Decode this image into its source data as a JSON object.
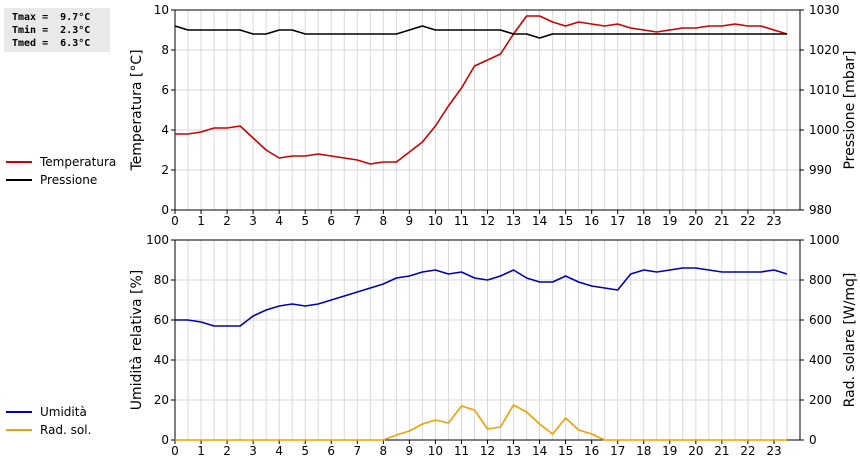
{
  "stats": {
    "tmax": "Tmax =  9.7°C",
    "tmin": "Tmin =  2.3°C",
    "tmed": "Tmed =  6.3°C"
  },
  "legend_top": [
    {
      "label": "Temperatura",
      "color": "#cc0000"
    },
    {
      "label": "Pressione",
      "color": "#000000"
    }
  ],
  "legend_bottom": [
    {
      "label": "Umidità",
      "color": "#0000bb"
    },
    {
      "label": "Rad. sol.",
      "color": "#f0a000"
    }
  ],
  "chart_data": [
    {
      "type": "line",
      "xlim": [
        0,
        24
      ],
      "xticks": [
        0,
        1,
        2,
        3,
        4,
        5,
        6,
        7,
        8,
        9,
        10,
        11,
        12,
        13,
        14,
        15,
        16,
        17,
        18,
        19,
        20,
        21,
        22,
        23
      ],
      "ylabel": "Temperatura [°C]",
      "ylim": [
        0,
        10
      ],
      "yticks": [
        0,
        2,
        4,
        6,
        8,
        10
      ],
      "y2label": "Pressione [mbar]",
      "y2lim": [
        980,
        1030
      ],
      "y2ticks": [
        980,
        990,
        1000,
        1010,
        1020,
        1030
      ],
      "grid": true,
      "x": [
        0,
        0.5,
        1,
        1.5,
        2,
        2.5,
        3,
        3.5,
        4,
        4.5,
        5,
        5.5,
        6,
        6.5,
        7,
        7.5,
        8,
        8.5,
        9,
        9.5,
        10,
        10.5,
        11,
        11.5,
        12,
        12.5,
        13,
        13.5,
        14,
        14.5,
        15,
        15.5,
        16,
        16.5,
        17,
        17.5,
        18,
        18.5,
        19,
        19.5,
        20,
        20.5,
        21,
        21.5,
        22,
        22.5,
        23,
        23.5
      ],
      "series": [
        {
          "name": "Temperatura",
          "axis": "left",
          "color": "#cc0000",
          "values": [
            3.8,
            3.8,
            3.9,
            4.1,
            4.1,
            4.2,
            3.6,
            3.0,
            2.6,
            2.7,
            2.7,
            2.8,
            2.7,
            2.6,
            2.5,
            2.3,
            2.4,
            2.4,
            2.9,
            3.4,
            4.2,
            5.2,
            6.1,
            7.2,
            7.5,
            7.8,
            8.8,
            9.7,
            9.7,
            9.4,
            9.2,
            9.4,
            9.3,
            9.2,
            9.3,
            9.1,
            9.0,
            8.9,
            9.0,
            9.1,
            9.1,
            9.2,
            9.2,
            9.3,
            9.2,
            9.2,
            9.0,
            8.8
          ]
        },
        {
          "name": "Pressione",
          "axis": "right",
          "color": "#000000",
          "values": [
            1026,
            1025,
            1025,
            1025,
            1025,
            1025,
            1024,
            1024,
            1025,
            1025,
            1024,
            1024,
            1024,
            1024,
            1024,
            1024,
            1024,
            1024,
            1025,
            1026,
            1025,
            1025,
            1025,
            1025,
            1025,
            1025,
            1024,
            1024,
            1023,
            1024,
            1024,
            1024,
            1024,
            1024,
            1024,
            1024,
            1024,
            1024,
            1024,
            1024,
            1024,
            1024,
            1024,
            1024,
            1024,
            1024,
            1024,
            1024
          ]
        }
      ]
    },
    {
      "type": "line",
      "xlim": [
        0,
        24
      ],
      "xticks": [
        0,
        1,
        2,
        3,
        4,
        5,
        6,
        7,
        8,
        9,
        10,
        11,
        12,
        13,
        14,
        15,
        16,
        17,
        18,
        19,
        20,
        21,
        22,
        23
      ],
      "ylabel": "Umidità relativa [%]",
      "ylim": [
        0,
        100
      ],
      "yticks": [
        0,
        20,
        40,
        60,
        80,
        100
      ],
      "y2label": "Rad. solare [W/mq]",
      "y2lim": [
        0,
        1000
      ],
      "y2ticks": [
        0,
        200,
        400,
        600,
        800,
        1000
      ],
      "grid": true,
      "x": [
        0,
        0.5,
        1,
        1.5,
        2,
        2.5,
        3,
        3.5,
        4,
        4.5,
        5,
        5.5,
        6,
        6.5,
        7,
        7.5,
        8,
        8.5,
        9,
        9.5,
        10,
        10.5,
        11,
        11.5,
        12,
        12.5,
        13,
        13.5,
        14,
        14.5,
        15,
        15.5,
        16,
        16.5,
        17,
        17.5,
        18,
        18.5,
        19,
        19.5,
        20,
        20.5,
        21,
        21.5,
        22,
        22.5,
        23,
        23.5
      ],
      "series": [
        {
          "name": "Umidità",
          "axis": "left",
          "color": "#0000bb",
          "values": [
            60,
            60,
            59,
            57,
            57,
            57,
            62,
            65,
            67,
            68,
            67,
            68,
            70,
            72,
            74,
            76,
            78,
            81,
            82,
            84,
            85,
            83,
            84,
            81,
            80,
            82,
            85,
            81,
            79,
            79,
            82,
            79,
            77,
            76,
            75,
            83,
            85,
            84,
            85,
            86,
            86,
            85,
            84,
            84,
            84,
            84,
            85,
            83
          ]
        },
        {
          "name": "Rad. sol.",
          "axis": "right",
          "color": "#f0a000",
          "values": [
            0,
            0,
            0,
            0,
            0,
            0,
            0,
            0,
            0,
            0,
            0,
            0,
            0,
            0,
            0,
            0,
            0,
            25,
            45,
            80,
            100,
            85,
            170,
            150,
            55,
            65,
            175,
            140,
            80,
            30,
            110,
            50,
            30,
            0,
            0,
            0,
            0,
            0,
            0,
            0,
            0,
            0,
            0,
            0,
            0,
            0,
            0,
            0
          ]
        }
      ]
    }
  ]
}
